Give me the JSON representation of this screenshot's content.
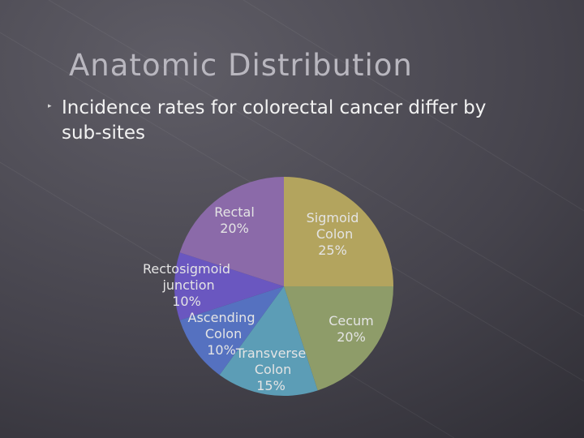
{
  "chart_data": {
    "type": "pie",
    "title": "Anatomic Distribution",
    "subtitle": "Incidence rates for colorectal cancer differ by sub-sites",
    "categories": [
      "Sigmoid Colon",
      "Cecum",
      "Transverse Colon",
      "Ascending Colon",
      "Rectosigmoid junction",
      "Rectal"
    ],
    "values": [
      25,
      20,
      15,
      10,
      10,
      20
    ],
    "value_labels": [
      "25%",
      "20%",
      "15%",
      "10%",
      "10%",
      "20%"
    ],
    "colors": [
      "#b3a45e",
      "#8e9c69",
      "#5c9db6",
      "#5571c0",
      "#6a57c0",
      "#8b6aa9"
    ]
  }
}
